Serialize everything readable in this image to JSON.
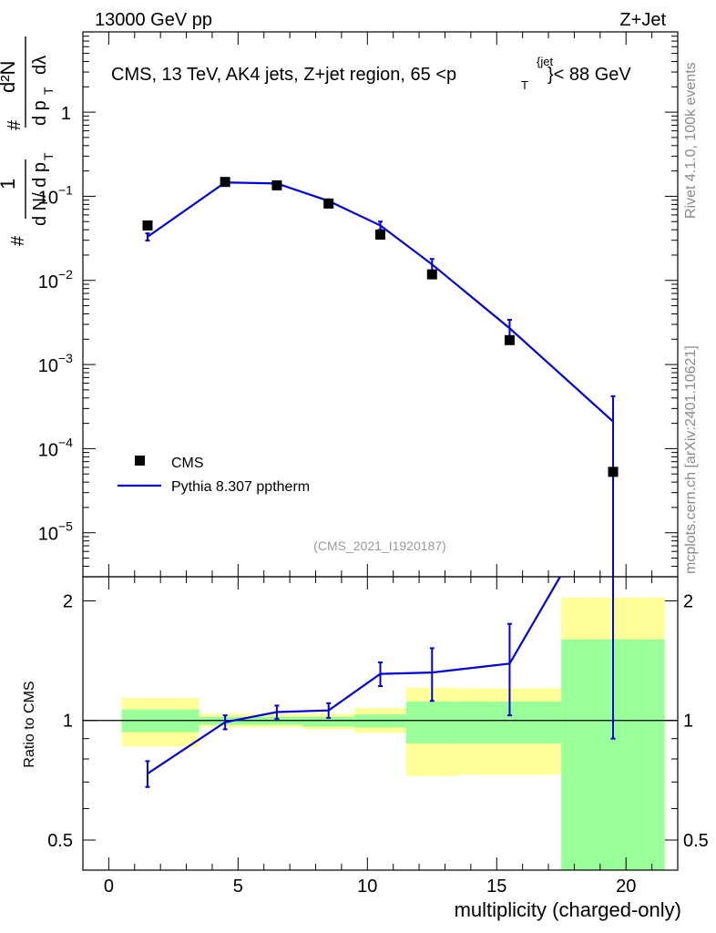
{
  "header": {
    "left_label": "13000 GeV pp",
    "right_label": "Z+Jet"
  },
  "side": {
    "version_label": "Rivet 4.1.0,  100k events",
    "source_label": "mcplots.cern.ch [arXiv:2401.10621]"
  },
  "chart_data": [
    {
      "type": "line",
      "panel": "main",
      "title": "CMS, 13 TeV, AK4 jets, Z+jet region, 65 <p_T^{jet}< 88 GeV",
      "watermark": "(CMS_2021_I1920187)",
      "ylabel": "1/dN/dpT · d²N/dpT dλ",
      "yscale": "log",
      "xlim": [
        -1,
        22
      ],
      "ylim": [
        3e-06,
        9
      ],
      "ytick_labels": [
        "1",
        "10^-1",
        "10^-2",
        "10^-3",
        "10^-4",
        "10^-5"
      ],
      "legend": {
        "position": "lower-left",
        "entries": [
          "CMS",
          "Pythia 8.307 pptherm"
        ]
      },
      "series": [
        {
          "name": "CMS",
          "style": "marker",
          "color": "#000000",
          "x": [
            1.5,
            4.5,
            6.5,
            8.5,
            10.5,
            12.5,
            15.5,
            19.5
          ],
          "y": [
            0.045,
            0.148,
            0.135,
            0.082,
            0.035,
            0.0118,
            0.00195,
            5.3e-05
          ]
        },
        {
          "name": "Pythia 8.307 pptherm",
          "style": "line",
          "color": "#0000dd",
          "x": [
            1.5,
            4.5,
            6.5,
            8.5,
            10.5,
            12.5,
            15.5,
            19.5
          ],
          "y": [
            0.033,
            0.146,
            0.142,
            0.088,
            0.045,
            0.0155,
            0.0027,
            0.00021
          ],
          "err_low": [
            0.0032,
            0.006,
            0.005,
            0.004,
            0.005,
            0.0025,
            0.0007,
            0.000209
          ],
          "err_high": [
            0.0032,
            0.006,
            0.005,
            0.004,
            0.005,
            0.0025,
            0.0007,
            0.00021
          ]
        }
      ]
    },
    {
      "type": "line",
      "panel": "ratio",
      "ylabel": "Ratio to CMS",
      "xlabel": "multiplicity (charged-only)",
      "yscale": "log",
      "xlim": [
        -1,
        22
      ],
      "ylim": [
        0.42,
        2.3
      ],
      "ytick_labels": [
        "0.5",
        "1",
        "2"
      ],
      "xtick_labels": [
        "0",
        "5",
        "10",
        "15",
        "20"
      ],
      "reference_line": 1,
      "bands": [
        {
          "x0": 0.5,
          "x1": 3.5,
          "inner": [
            0.935,
            1.065
          ],
          "outer": [
            0.86,
            1.14
          ]
        },
        {
          "x0": 3.5,
          "x1": 5.5,
          "inner": [
            0.975,
            1.02
          ],
          "outer": [
            0.96,
            1.04
          ]
        },
        {
          "x0": 5.5,
          "x1": 7.5,
          "inner": [
            0.975,
            1.02
          ],
          "outer": [
            0.96,
            1.04
          ]
        },
        {
          "x0": 7.5,
          "x1": 9.5,
          "inner": [
            0.965,
            1.02
          ],
          "outer": [
            0.95,
            1.04
          ]
        },
        {
          "x0": 9.5,
          "x1": 11.5,
          "inner": [
            0.96,
            1.035
          ],
          "outer": [
            0.93,
            1.075
          ]
        },
        {
          "x0": 11.5,
          "x1": 13.5,
          "inner": [
            0.875,
            1.115
          ],
          "outer": [
            0.725,
            1.21
          ]
        },
        {
          "x0": 13.5,
          "x1": 17.5,
          "inner": [
            0.875,
            1.115
          ],
          "outer": [
            0.73,
            1.205
          ]
        },
        {
          "x0": 17.5,
          "x1": 21.5,
          "inner": [
            0.405,
            1.6
          ],
          "outer": [
            0.38,
            2.04
          ]
        }
      ],
      "series": [
        {
          "name": "Pythia 8.307 pptherm / CMS",
          "color": "#0000dd",
          "x": [
            1.5,
            4.5,
            6.5,
            8.5,
            10.5,
            12.5,
            15.5,
            19.5
          ],
          "y": [
            0.735,
            0.99,
            1.05,
            1.06,
            1.31,
            1.32,
            1.39,
            3.9
          ],
          "err_low": [
            0.055,
            0.04,
            0.04,
            0.045,
            0.09,
            0.2,
            0.36,
            3.0
          ],
          "err_high": [
            0.055,
            0.04,
            0.04,
            0.045,
            0.09,
            0.2,
            0.36,
            3.0
          ]
        }
      ]
    }
  ]
}
